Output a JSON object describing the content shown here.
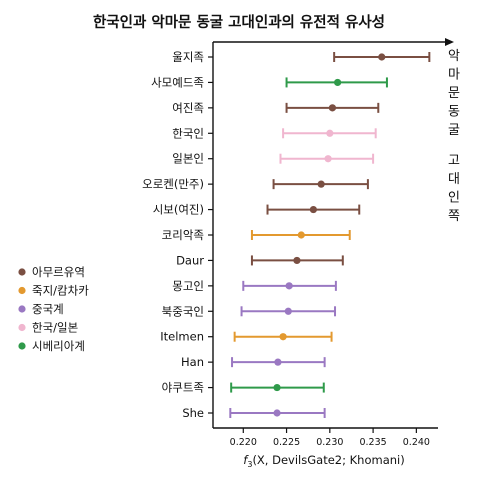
{
  "chart_data": {
    "type": "scatter",
    "title": "한국인과 악마문 동굴 고대인과의 유전적 유사성",
    "xlabel": "f3(X, DevilsGate2; Khomani)",
    "ylabel": "",
    "xlim": [
      0.2165,
      0.2425
    ],
    "x_ticks": [
      "0.220",
      "0.225",
      "0.230",
      "0.235",
      "0.240"
    ],
    "grid": false,
    "legend_position": "left",
    "right_annotation": "악마문동굴 고대인쪽",
    "right_annotation_lines": [
      "악",
      "마",
      "문",
      "동",
      "굴",
      "",
      "고",
      "대",
      "인",
      "쪽"
    ],
    "groups": [
      {
        "name": "아무르유역",
        "color": "#7a4f42"
      },
      {
        "name": "죽지/캄차카",
        "color": "#e3992f"
      },
      {
        "name": "중국계",
        "color": "#9a78c2"
      },
      {
        "name": "한국/일본",
        "color": "#f0b6cf"
      },
      {
        "name": "시베리아계",
        "color": "#2f9a4a"
      }
    ],
    "points": [
      {
        "label": "울지족",
        "group": "아무르유역",
        "estimate": 0.236,
        "ci": [
          0.2305,
          0.2415
        ]
      },
      {
        "label": "사모예드족",
        "group": "시베리아계",
        "estimate": 0.2309,
        "ci": [
          0.225,
          0.2366
        ]
      },
      {
        "label": "여진족",
        "group": "아무르유역",
        "estimate": 0.2303,
        "ci": [
          0.225,
          0.2356
        ]
      },
      {
        "label": "한국인",
        "group": "한국/일본",
        "estimate": 0.23,
        "ci": [
          0.2246,
          0.2353
        ]
      },
      {
        "label": "일본인",
        "group": "한국/일본",
        "estimate": 0.2298,
        "ci": [
          0.2243,
          0.235
        ]
      },
      {
        "label": "오로켄(만주)",
        "group": "아무르유역",
        "estimate": 0.229,
        "ci": [
          0.2235,
          0.2344
        ]
      },
      {
        "label": "시보(여진)",
        "group": "아무르유역",
        "estimate": 0.2281,
        "ci": [
          0.2228,
          0.2334
        ]
      },
      {
        "label": "코리악족",
        "group": "죽지/캄차카",
        "estimate": 0.2267,
        "ci": [
          0.221,
          0.2323
        ]
      },
      {
        "label": "Daur",
        "group": "아무르유역",
        "estimate": 0.2262,
        "ci": [
          0.221,
          0.2315
        ]
      },
      {
        "label": "몽고인",
        "group": "중국계",
        "estimate": 0.2253,
        "ci": [
          0.22,
          0.2307
        ]
      },
      {
        "label": "북중국인",
        "group": "중국계",
        "estimate": 0.2252,
        "ci": [
          0.2198,
          0.2306
        ]
      },
      {
        "label": "Itelmen",
        "group": "죽지/캄차카",
        "estimate": 0.2246,
        "ci": [
          0.219,
          0.2302
        ]
      },
      {
        "label": "Han",
        "group": "중국계",
        "estimate": 0.224,
        "ci": [
          0.2187,
          0.2294
        ]
      },
      {
        "label": "야쿠트족",
        "group": "시베리아계",
        "estimate": 0.2239,
        "ci": [
          0.2186,
          0.2293
        ]
      },
      {
        "label": "She",
        "group": "중국계",
        "estimate": 0.2239,
        "ci": [
          0.2185,
          0.2294
        ]
      }
    ]
  }
}
